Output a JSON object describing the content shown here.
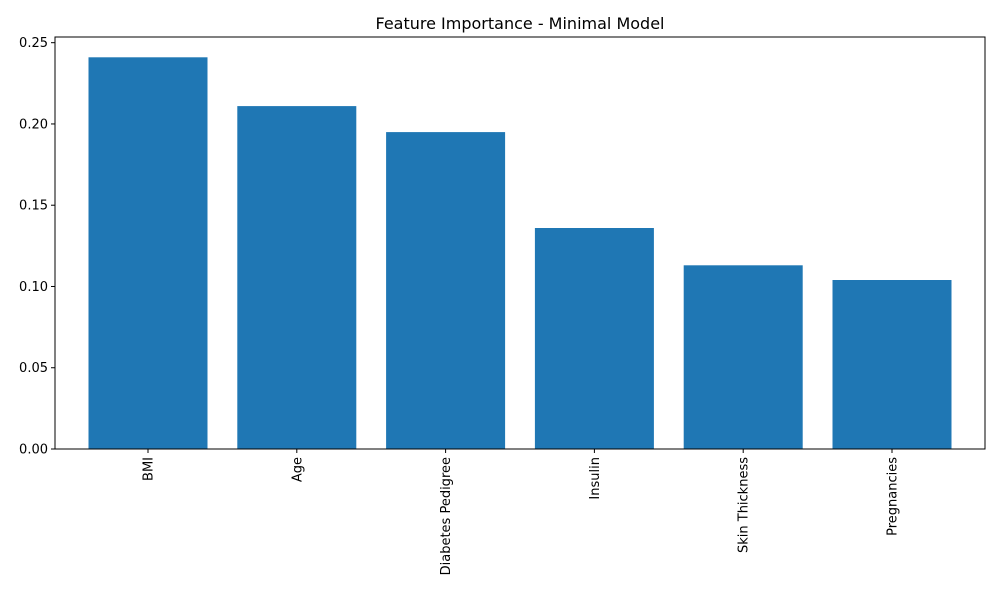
{
  "chart_data": {
    "type": "bar",
    "title": "Feature Importance - Minimal Model",
    "xlabel": "",
    "ylabel": "",
    "categories": [
      "BMI",
      "Age",
      "Diabetes Pedigree",
      "Insulin",
      "Skin Thickness",
      "Pregnancies"
    ],
    "values": [
      0.241,
      0.211,
      0.195,
      0.136,
      0.113,
      0.104
    ],
    "ylim": [
      0,
      0.2535
    ],
    "yticks": [
      "0.00",
      "0.05",
      "0.10",
      "0.15",
      "0.20",
      "0.25"
    ],
    "x_tick_rotation": "vertical",
    "grid": false,
    "legend": "none",
    "bar_color": "#1f77b4"
  }
}
